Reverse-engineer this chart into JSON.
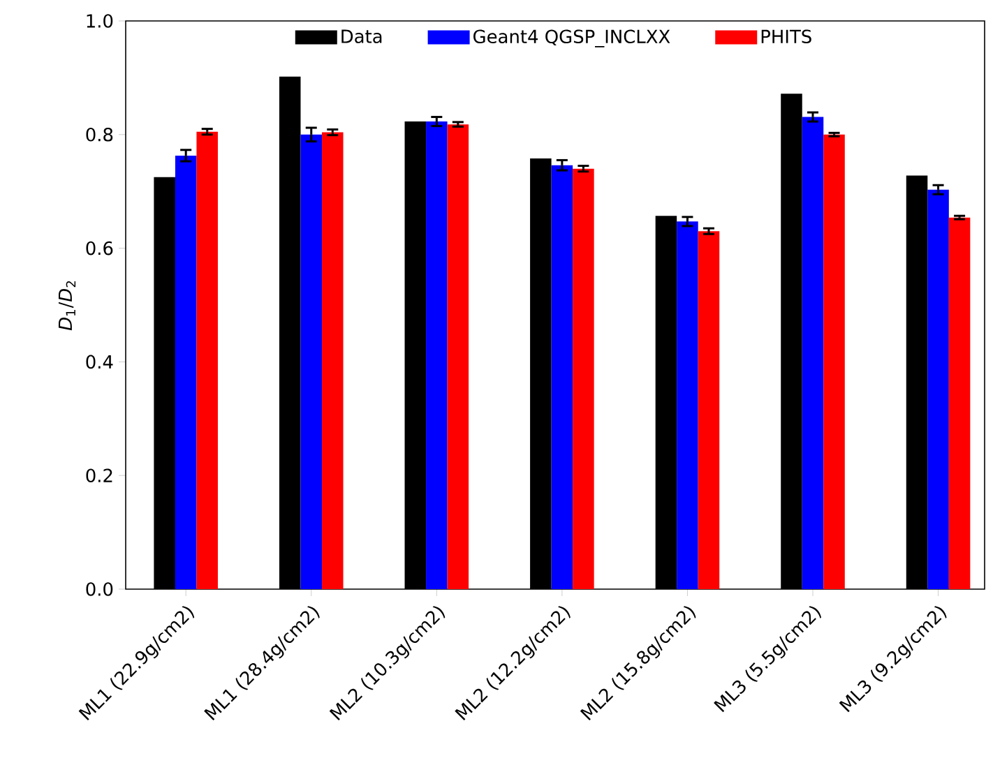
{
  "chart_data": {
    "type": "bar",
    "ylabel": "*D*$_{1}$/*D*$_{2}$",
    "categories": [
      "ML1 (22.9g/cm2)",
      "ML1 (28.4g/cm2)",
      "ML2 (10.3g/cm2)",
      "ML2 (12.2g/cm2)",
      "ML2 (15.8g/cm2)",
      "ML3 (5.5g/cm2)",
      "ML3 (9.2g/cm2)"
    ],
    "series": [
      {
        "name": "Data",
        "color": "#000000",
        "values": [
          0.725,
          0.902,
          0.823,
          0.758,
          0.657,
          0.872,
          0.728
        ]
      },
      {
        "name": "Geant4 QGSP_INCLXX",
        "color": "#0000ff",
        "values": [
          0.763,
          0.8,
          0.823,
          0.746,
          0.647,
          0.831,
          0.703
        ],
        "errors": [
          0.01,
          0.012,
          0.008,
          0.009,
          0.008,
          0.008,
          0.008
        ]
      },
      {
        "name": "PHITS",
        "color": "#ff0000",
        "values": [
          0.805,
          0.804,
          0.818,
          0.74,
          0.63,
          0.8,
          0.654
        ],
        "errors": [
          0.005,
          0.005,
          0.004,
          0.005,
          0.005,
          0.003,
          0.003
        ]
      }
    ],
    "ylim": [
      0,
      1.0
    ],
    "yticks": [
      {
        "value": 0,
        "label": "0.0"
      },
      {
        "value": 0.2,
        "label": "0.2"
      },
      {
        "value": 0.4,
        "label": "0.4"
      },
      {
        "value": 0.6,
        "label": "0.6"
      },
      {
        "value": 0.8,
        "label": "0.8"
      },
      {
        "value": 1.0,
        "label": "1.0"
      }
    ],
    "legend": "top",
    "grid": false
  }
}
